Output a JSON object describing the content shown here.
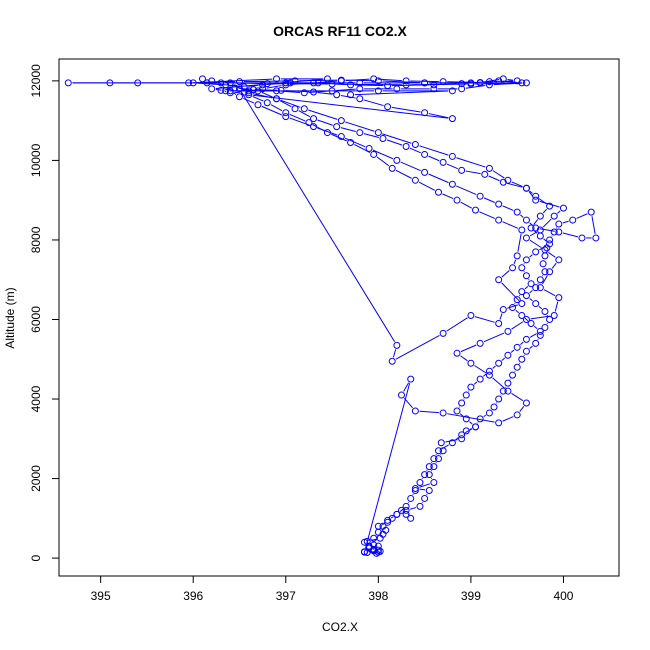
{
  "chart_data": {
    "type": "scatter",
    "title": "ORCAS RF11 CO2.X",
    "xlabel": "CO2.X",
    "ylabel": "Altitude (m)",
    "xlim": [
      394.55,
      400.6
    ],
    "ylim": [
      -450,
      12550
    ],
    "xticks": [
      "395",
      "396",
      "397",
      "398",
      "399",
      "400"
    ],
    "yticks": [
      "0",
      "2000",
      "4000",
      "6000",
      "8000",
      "10000",
      "12000"
    ],
    "style": "points connected by lines (type b)",
    "color": "#0000ff",
    "grid": false,
    "legend": "none",
    "series": [
      {
        "points": [
          [
            398.0,
            150
          ],
          [
            397.85,
            160
          ],
          [
            397.95,
            180
          ],
          [
            398.0,
            200
          ],
          [
            397.9,
            250
          ],
          [
            398.0,
            300
          ],
          [
            397.98,
            120
          ],
          [
            397.88,
            140
          ],
          [
            398.02,
            170
          ],
          [
            397.95,
            220
          ],
          [
            397.9,
            280
          ],
          [
            397.95,
            330
          ],
          [
            397.88,
            420
          ],
          [
            398.02,
            500
          ],
          [
            398.05,
            600
          ],
          [
            398.08,
            700
          ],
          [
            398.0,
            800
          ],
          [
            398.1,
            900
          ],
          [
            398.15,
            1000
          ],
          [
            398.2,
            1100
          ],
          [
            398.25,
            1200
          ],
          [
            398.3,
            1100
          ],
          [
            398.35,
            1000
          ],
          [
            398.3,
            1200
          ],
          [
            398.45,
            1300
          ],
          [
            398.5,
            1500
          ],
          [
            398.55,
            1700
          ],
          [
            398.4,
            1750
          ],
          [
            398.6,
            1900
          ],
          [
            398.55,
            2100
          ],
          [
            398.6,
            2300
          ],
          [
            398.65,
            2500
          ],
          [
            398.7,
            2700
          ],
          [
            398.68,
            2900
          ],
          [
            398.9,
            3000
          ],
          [
            398.95,
            3200
          ],
          [
            399.05,
            3300
          ],
          [
            399.1,
            3500
          ],
          [
            399.2,
            3650
          ],
          [
            399.25,
            3800
          ],
          [
            399.3,
            4000
          ],
          [
            399.35,
            4200
          ],
          [
            399.4,
            4400
          ],
          [
            399.45,
            4600
          ],
          [
            399.5,
            4800
          ],
          [
            399.55,
            5000
          ],
          [
            399.6,
            5200
          ],
          [
            399.7,
            5400
          ],
          [
            399.75,
            5600
          ],
          [
            399.8,
            5800
          ],
          [
            399.85,
            6000
          ],
          [
            399.8,
            6200
          ],
          [
            399.7,
            6400
          ],
          [
            399.6,
            6600
          ],
          [
            399.7,
            6800
          ],
          [
            399.75,
            7000
          ],
          [
            399.8,
            7200
          ],
          [
            399.78,
            7400
          ],
          [
            399.8,
            7600
          ],
          [
            399.82,
            7800
          ],
          [
            399.85,
            8000
          ],
          [
            399.9,
            8200
          ],
          [
            399.95,
            8400
          ],
          [
            400.1,
            8500
          ],
          [
            400.3,
            8700
          ],
          [
            400.35,
            8050
          ],
          [
            400.2,
            8050
          ],
          [
            399.95,
            8200
          ],
          [
            399.7,
            8300
          ],
          [
            399.6,
            8500
          ],
          [
            399.5,
            8700
          ],
          [
            399.3,
            8900
          ],
          [
            399.1,
            9100
          ],
          [
            398.8,
            9400
          ],
          [
            398.5,
            9700
          ],
          [
            398.2,
            10000
          ],
          [
            397.9,
            10300
          ],
          [
            397.6,
            10600
          ],
          [
            397.3,
            10850
          ],
          [
            397.0,
            11100
          ],
          [
            396.7,
            11400
          ],
          [
            396.5,
            11600
          ],
          [
            396.4,
            11750
          ],
          [
            396.6,
            11750
          ],
          [
            396.9,
            11750
          ],
          [
            397.2,
            11700
          ],
          [
            397.5,
            11750
          ],
          [
            397.8,
            11800
          ],
          [
            398.2,
            11800
          ],
          [
            398.6,
            11800
          ],
          [
            398.9,
            11800
          ],
          [
            399.2,
            11900
          ],
          [
            399.6,
            11950
          ],
          [
            399.1,
            11950
          ],
          [
            398.5,
            11950
          ],
          [
            397.8,
            11950
          ],
          [
            397.0,
            11950
          ],
          [
            396.3,
            11950
          ],
          [
            395.4,
            11950
          ],
          [
            395.1,
            11950
          ],
          [
            394.65,
            11950
          ],
          [
            395.95,
            11950
          ],
          [
            396.5,
            11980
          ],
          [
            397.1,
            12000
          ],
          [
            397.6,
            12020
          ],
          [
            398.0,
            12000
          ],
          [
            398.5,
            11950
          ],
          [
            399.0,
            11950
          ],
          [
            399.3,
            12000
          ],
          [
            399.55,
            11950
          ],
          [
            399.0,
            11920
          ],
          [
            398.3,
            11900
          ],
          [
            397.5,
            11920
          ],
          [
            396.8,
            11930
          ],
          [
            396.4,
            11950
          ],
          [
            396.6,
            11700
          ],
          [
            396.9,
            11550
          ],
          [
            397.2,
            11300
          ],
          [
            397.6,
            11000
          ],
          [
            398.0,
            10700
          ],
          [
            398.4,
            10400
          ],
          [
            398.8,
            10100
          ],
          [
            399.2,
            9800
          ],
          [
            399.4,
            9500
          ],
          [
            399.6,
            9300
          ],
          [
            399.7,
            9100
          ],
          [
            399.85,
            8850
          ],
          [
            399.75,
            8600
          ],
          [
            399.65,
            8300
          ],
          [
            399.75,
            8100
          ],
          [
            399.85,
            7900
          ],
          [
            399.7,
            7700
          ],
          [
            399.6,
            7500
          ],
          [
            399.55,
            7300
          ],
          [
            399.6,
            7100
          ],
          [
            399.65,
            6900
          ],
          [
            399.55,
            6700
          ],
          [
            399.5,
            6500
          ],
          [
            399.45,
            6300
          ],
          [
            399.55,
            6100
          ],
          [
            399.65,
            5900
          ],
          [
            399.75,
            5700
          ],
          [
            399.6,
            5500
          ],
          [
            399.5,
            5300
          ],
          [
            399.4,
            5100
          ],
          [
            399.3,
            4900
          ],
          [
            399.2,
            4700
          ],
          [
            399.1,
            4500
          ],
          [
            399.0,
            4300
          ],
          [
            398.95,
            4100
          ],
          [
            398.9,
            3900
          ],
          [
            398.85,
            3700
          ],
          [
            398.95,
            3500
          ],
          [
            399.05,
            3300
          ],
          [
            398.9,
            3100
          ],
          [
            398.8,
            2900
          ],
          [
            398.65,
            2700
          ],
          [
            398.6,
            2500
          ],
          [
            398.55,
            2300
          ],
          [
            398.5,
            2100
          ],
          [
            398.45,
            1900
          ],
          [
            398.4,
            1700
          ],
          [
            398.35,
            1500
          ],
          [
            398.3,
            1300
          ],
          [
            398.2,
            1100
          ],
          [
            398.1,
            950
          ],
          [
            398.05,
            800
          ],
          [
            398.0,
            650
          ],
          [
            397.95,
            500
          ],
          [
            397.85,
            400
          ],
          [
            397.9,
            300
          ],
          [
            397.95,
            200
          ],
          [
            397.85,
            150
          ],
          [
            398.35,
            4500
          ],
          [
            398.25,
            4100
          ],
          [
            398.4,
            3700
          ],
          [
            398.7,
            3650
          ],
          [
            399.3,
            3400
          ],
          [
            399.5,
            3600
          ],
          [
            399.6,
            3900
          ],
          [
            399.4,
            4200
          ],
          [
            399.2,
            4600
          ],
          [
            399.0,
            4900
          ],
          [
            398.85,
            5150
          ],
          [
            399.1,
            5400
          ],
          [
            399.4,
            5700
          ],
          [
            399.6,
            6000
          ],
          [
            399.9,
            6100
          ],
          [
            399.95,
            6550
          ],
          [
            399.75,
            6800
          ],
          [
            399.85,
            7200
          ],
          [
            399.95,
            7500
          ],
          [
            399.8,
            7750
          ],
          [
            399.6,
            8050
          ],
          [
            399.75,
            8250
          ],
          [
            399.9,
            8600
          ],
          [
            400.0,
            8800
          ],
          [
            399.7,
            9000
          ],
          [
            399.6,
            9300
          ],
          [
            399.35,
            9450
          ],
          [
            399.15,
            9650
          ],
          [
            398.9,
            9750
          ],
          [
            398.7,
            9950
          ],
          [
            398.5,
            10150
          ],
          [
            398.3,
            10350
          ],
          [
            398.05,
            10550
          ],
          [
            397.8,
            10700
          ],
          [
            397.55,
            10850
          ],
          [
            397.3,
            11050
          ],
          [
            397.1,
            11300
          ],
          [
            396.9,
            11550
          ],
          [
            396.7,
            11750
          ],
          [
            396.5,
            11800
          ],
          [
            398.2,
            5350
          ],
          [
            398.15,
            4950
          ],
          [
            398.7,
            5650
          ],
          [
            399.0,
            6100
          ],
          [
            399.3,
            5900
          ],
          [
            399.35,
            6250
          ],
          [
            399.55,
            6400
          ],
          [
            399.3,
            7000
          ],
          [
            399.45,
            7300
          ],
          [
            399.5,
            7600
          ],
          [
            399.55,
            8250
          ],
          [
            399.3,
            8500
          ],
          [
            399.05,
            8750
          ],
          [
            398.85,
            9000
          ],
          [
            398.65,
            9200
          ],
          [
            398.4,
            9500
          ],
          [
            398.15,
            9800
          ],
          [
            397.95,
            10150
          ],
          [
            397.7,
            10450
          ],
          [
            397.45,
            10700
          ],
          [
            397.25,
            10950
          ],
          [
            397.0,
            11200
          ],
          [
            396.8,
            11450
          ],
          [
            396.6,
            11650
          ],
          [
            398.8,
            11050
          ],
          [
            398.5,
            11200
          ],
          [
            398.1,
            11350
          ],
          [
            397.8,
            11550
          ],
          [
            397.55,
            11650
          ],
          [
            397.3,
            11720
          ],
          [
            396.95,
            11760
          ],
          [
            396.65,
            11780
          ],
          [
            396.45,
            11820
          ],
          [
            396.3,
            11760
          ],
          [
            396.4,
            11700
          ],
          [
            396.55,
            11720
          ],
          [
            396.75,
            11800
          ],
          [
            397.0,
            11900
          ],
          [
            397.3,
            11950
          ],
          [
            397.6,
            12000
          ],
          [
            397.95,
            12050
          ],
          [
            398.3,
            12000
          ],
          [
            398.7,
            11980
          ],
          [
            399.1,
            11960
          ],
          [
            399.35,
            12050
          ],
          [
            399.5,
            12000
          ],
          [
            399.2,
            11980
          ],
          [
            398.9,
            11930
          ],
          [
            398.6,
            11900
          ],
          [
            398.1,
            11880
          ],
          [
            397.7,
            11900
          ],
          [
            397.35,
            11950
          ],
          [
            397.05,
            11950
          ],
          [
            396.75,
            11900
          ],
          [
            396.55,
            11850
          ],
          [
            396.15,
            11950
          ],
          [
            396.1,
            12050
          ],
          [
            396.2,
            12000
          ],
          [
            396.35,
            11900
          ],
          [
            396.0,
            11950
          ],
          [
            396.9,
            12050
          ],
          [
            397.45,
            12050
          ],
          [
            396.2,
            11800
          ],
          [
            396.35,
            11750
          ],
          [
            398.0,
            11750
          ],
          [
            398.8,
            11750
          ],
          [
            397.7,
            11650
          ]
        ]
      }
    ]
  }
}
